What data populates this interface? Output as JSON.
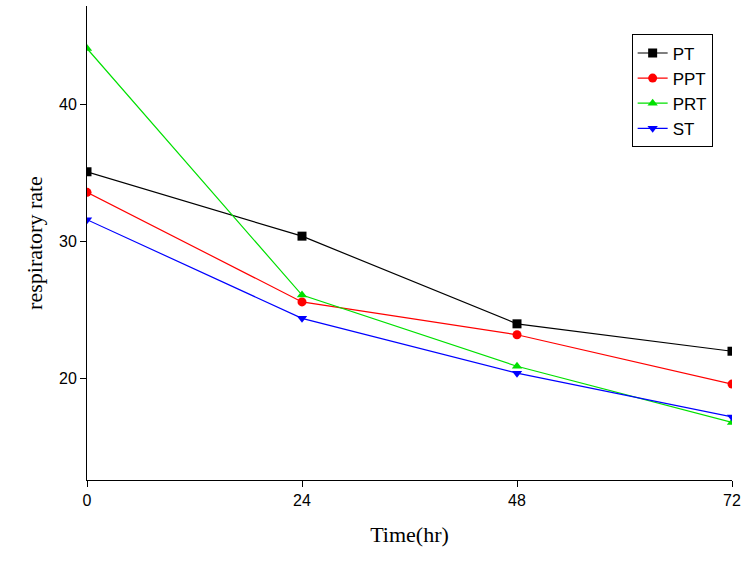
{
  "chart_data": {
    "type": "line",
    "x_label": "Time(hr)",
    "y_label": "respiratory rate",
    "x": [
      0,
      24,
      48,
      72
    ],
    "series": [
      {
        "name": "PT",
        "color": "#000000",
        "marker": "square",
        "values": [
          35.1,
          30.4,
          24.0,
          22.0
        ]
      },
      {
        "name": "PPT",
        "color": "#ff0000",
        "marker": "circle",
        "values": [
          33.6,
          25.6,
          23.2,
          19.6
        ]
      },
      {
        "name": "PRT",
        "color": "#00e000",
        "marker": "triangle-up",
        "values": [
          44.1,
          26.1,
          20.9,
          16.8
        ]
      },
      {
        "name": "ST",
        "color": "#0000ff",
        "marker": "triangle-down",
        "values": [
          31.6,
          24.4,
          20.4,
          17.2
        ]
      }
    ],
    "xlim": [
      0,
      72
    ],
    "xticks": [
      0,
      24,
      48,
      72
    ],
    "ylim": [
      12.6,
      47.2
    ],
    "yticks": [
      20,
      30,
      40
    ],
    "grid": false,
    "legend": "top-right"
  }
}
